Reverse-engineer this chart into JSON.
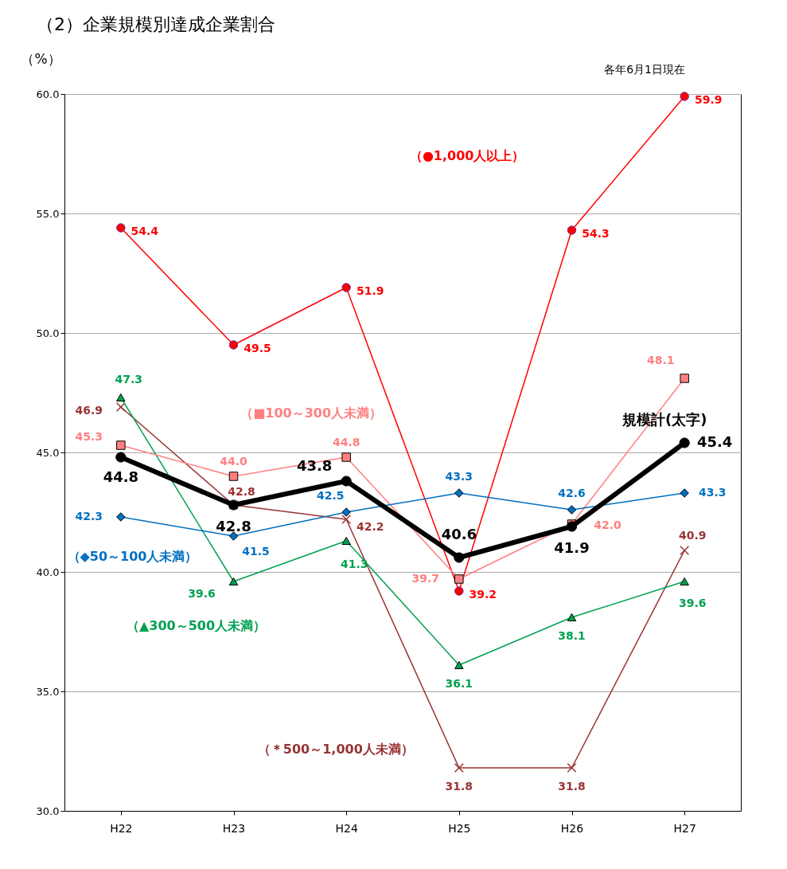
{
  "chart_data": {
    "type": "line",
    "title": "（2）企業規模別達成企業割合",
    "ylabel": "（%）",
    "annotations": [
      "各年6月1日現在"
    ],
    "categories": [
      "H22",
      "H23",
      "H24",
      "H25",
      "H26",
      "H27"
    ],
    "ylim": [
      30,
      60
    ],
    "yticks": [
      {
        "value": 30,
        "label": "30.0"
      },
      {
        "value": 35,
        "label": "35.0"
      },
      {
        "value": 40,
        "label": "40.0"
      },
      {
        "value": 45,
        "label": "45.0"
      },
      {
        "value": 50,
        "label": "50.0"
      },
      {
        "value": 55,
        "label": "55.0"
      },
      {
        "value": 60,
        "label": "60.0"
      }
    ],
    "grid": "y",
    "series": [
      {
        "name": "（●1,000人以上）",
        "color": "#ff0000",
        "marker": "circle",
        "values": [
          54.4,
          49.5,
          51.9,
          39.2,
          54.3,
          59.9
        ],
        "value_labels": [
          "54.4",
          "49.5",
          "51.9",
          "39.2",
          "54.3",
          "59.9"
        ]
      },
      {
        "name": "（＊500～1,000人未満）",
        "color": "#993333",
        "marker": "cross",
        "values": [
          46.9,
          42.8,
          42.2,
          31.8,
          31.8,
          40.9
        ],
        "value_labels": [
          "46.9",
          "42.8",
          "42.2",
          "31.8",
          "31.8",
          "40.9"
        ]
      },
      {
        "name": "（▲300～500人未満）",
        "color": "#00a050",
        "marker": "triangle",
        "values": [
          47.3,
          39.6,
          41.3,
          36.1,
          38.1,
          39.6
        ],
        "value_labels": [
          "47.3",
          "39.6",
          "41.3",
          "36.1",
          "38.1",
          "39.6"
        ]
      },
      {
        "name": "（■100～300人未満）",
        "color": "#ff8080",
        "marker": "square",
        "values": [
          45.3,
          44.0,
          44.8,
          39.7,
          42.0,
          48.1
        ],
        "value_labels": [
          "45.3",
          "44.0",
          "44.8",
          "39.7",
          "42.0",
          "48.1"
        ]
      },
      {
        "name": "（◆50～100人未満）",
        "color": "#0070c0",
        "marker": "diamond",
        "values": [
          42.3,
          41.5,
          42.5,
          43.3,
          42.6,
          43.3
        ],
        "value_labels": [
          "42.3",
          "41.5",
          "42.5",
          "43.3",
          "42.6",
          "43.3"
        ]
      },
      {
        "name": "規模計(太字)",
        "color": "#000000",
        "marker": "circle",
        "values": [
          44.8,
          42.8,
          43.8,
          40.6,
          41.9,
          45.4
        ],
        "value_labels": [
          "44.8",
          "42.8",
          "43.8",
          "40.6",
          "41.9",
          "45.4"
        ]
      }
    ]
  }
}
